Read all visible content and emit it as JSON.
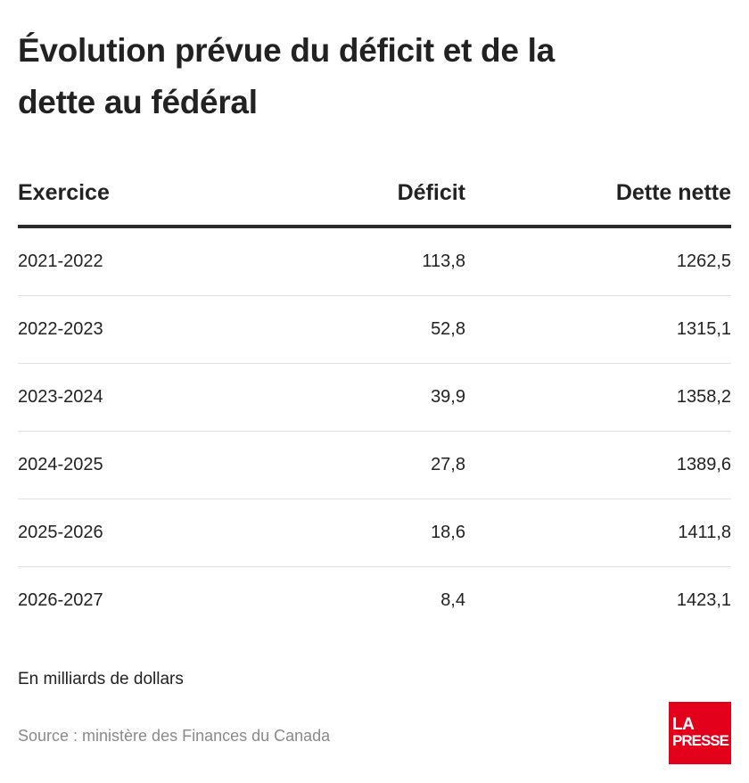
{
  "title": "Évolution prévue du déficit et de la dette au fédéral",
  "table": {
    "headers": {
      "year": "Exercice",
      "deficit": "Déficit",
      "debt": "Dette nette"
    },
    "rows": [
      {
        "year": "2021-2022",
        "deficit": "113,8",
        "debt": "1262,5"
      },
      {
        "year": "2022-2023",
        "deficit": "52,8",
        "debt": "1315,1"
      },
      {
        "year": "2023-2024",
        "deficit": "39,9",
        "debt": "1358,2"
      },
      {
        "year": "2024-2025",
        "deficit": "27,8",
        "debt": "1389,6"
      },
      {
        "year": "2025-2026",
        "deficit": "18,6",
        "debt": "1411,8"
      },
      {
        "year": "2026-2027",
        "deficit": "8,4",
        "debt": "1423,1"
      }
    ]
  },
  "chart_data": {
    "type": "table",
    "title": "Évolution prévue du déficit et de la dette au fédéral",
    "columns": [
      "Exercice",
      "Déficit",
      "Dette nette"
    ],
    "categories": [
      "2021-2022",
      "2022-2023",
      "2023-2024",
      "2024-2025",
      "2025-2026",
      "2026-2027"
    ],
    "series": [
      {
        "name": "Déficit",
        "values": [
          113.8,
          52.8,
          39.9,
          27.8,
          18.6,
          8.4
        ]
      },
      {
        "name": "Dette nette",
        "values": [
          1262.5,
          1315.1,
          1358.2,
          1389.6,
          1411.8,
          1423.1
        ]
      }
    ],
    "unit": "En milliards de dollars"
  },
  "footer": {
    "unit": "En milliards de dollars",
    "source": "Source : ministère des Finances du Canada"
  },
  "logo": {
    "line1": "LA",
    "line2": "PRESSE",
    "color": "#e3001b"
  }
}
